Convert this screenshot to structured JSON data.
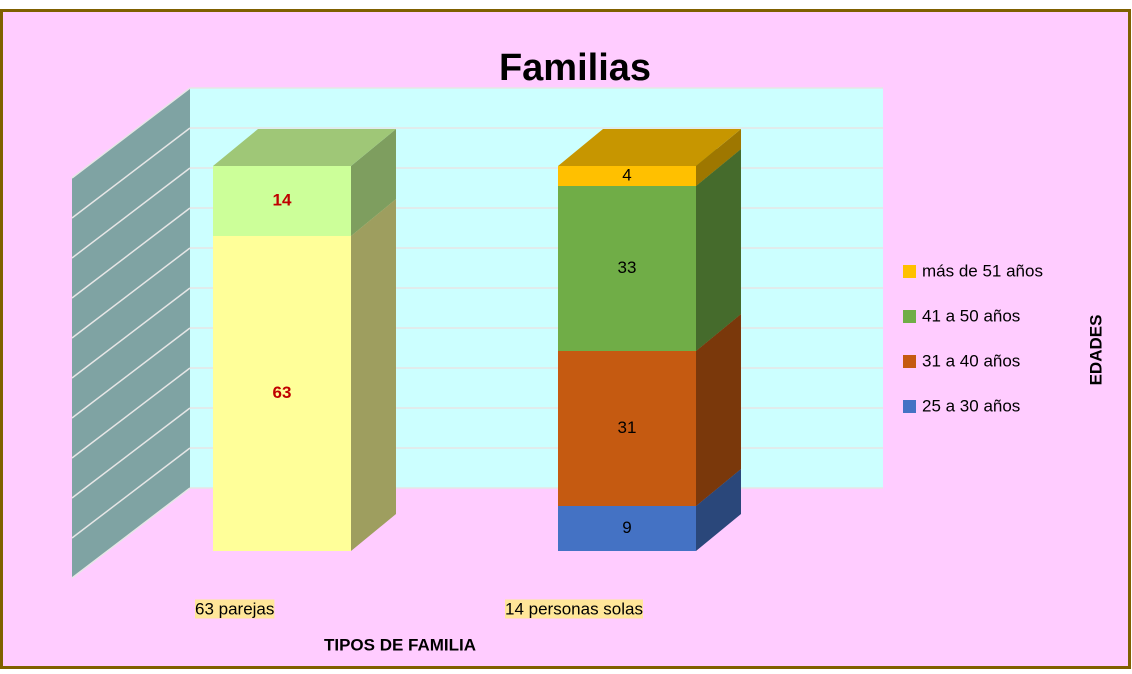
{
  "chart_data": {
    "type": "bar3d_stacked",
    "title": "Familias",
    "x_label": "TIPOS DE FAMILIA",
    "legend_title": "EDADES",
    "categories": [
      "63 parejas",
      "14 personas solas"
    ],
    "series": [
      {
        "color": "#FFFF99",
        "label_color": "#C00000",
        "values": [
          63,
          null
        ]
      },
      {
        "color": "#CCFF99",
        "label_color": "#C00000",
        "values": [
          14,
          null
        ]
      },
      {
        "name": "25 a 30 años",
        "color": "#4472C4",
        "label_color": "#000000",
        "values": [
          null,
          9
        ]
      },
      {
        "name": "31 a 40 años",
        "color": "#C55A11",
        "label_color": "#000000",
        "values": [
          null,
          31
        ]
      },
      {
        "name": "41 a 50 años",
        "color": "#70AD47",
        "label_color": "#000000",
        "values": [
          null,
          33
        ]
      },
      {
        "name": "más de 51 años",
        "color": "#FFC000",
        "label_color": "#000000",
        "values": [
          null,
          4
        ]
      }
    ],
    "ylim": [
      0,
      80
    ],
    "yticks": [
      0,
      8,
      16,
      24,
      32,
      40,
      48,
      56,
      64,
      72,
      80
    ],
    "grid": true,
    "legend": "right"
  }
}
